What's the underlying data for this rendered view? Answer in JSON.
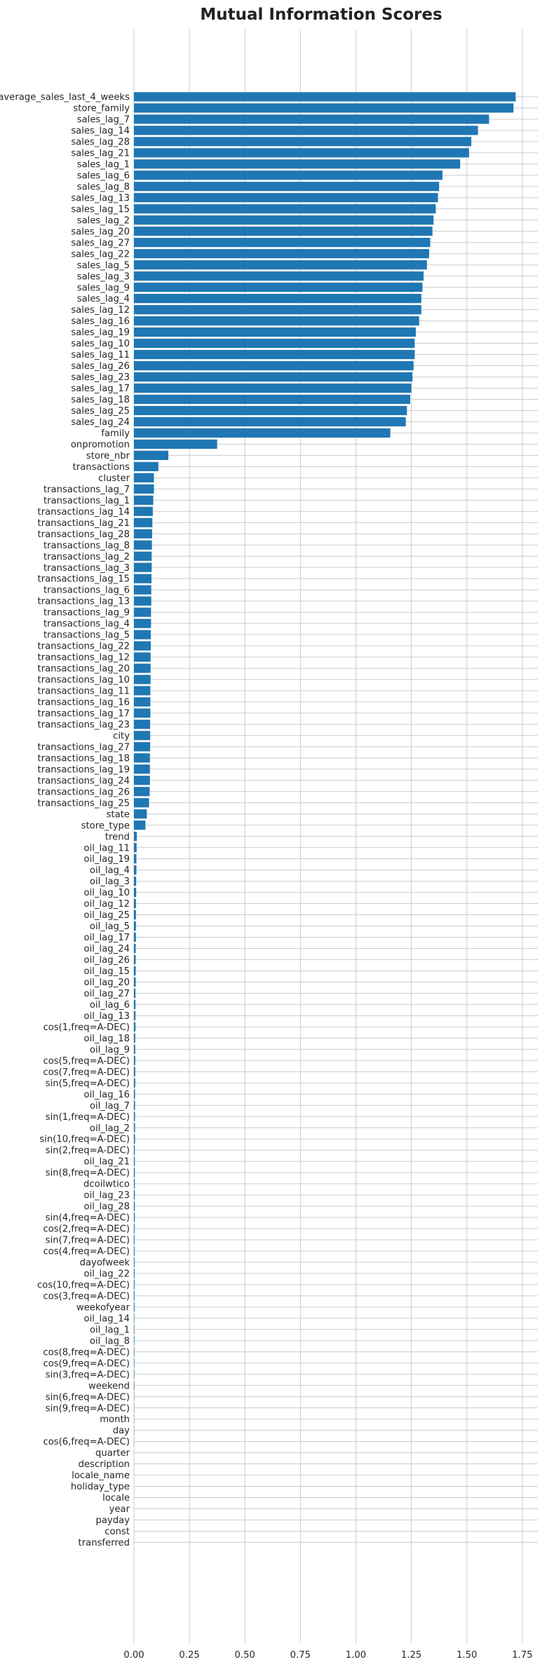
{
  "chart_data": {
    "type": "bar",
    "orientation": "horizontal",
    "title": "Mutual Information Scores",
    "xlabel": "",
    "ylabel": "",
    "xlim": [
      0,
      1.82
    ],
    "xticks": [
      "0.00",
      "0.25",
      "0.50",
      "0.75",
      "1.00",
      "1.25",
      "1.50",
      "1.75"
    ],
    "grid": true,
    "bar_color": "#1f77b4",
    "categories": [
      "average_sales_last_4_weeks",
      "store_family",
      "sales_lag_7",
      "sales_lag_14",
      "sales_lag_28",
      "sales_lag_21",
      "sales_lag_1",
      "sales_lag_6",
      "sales_lag_8",
      "sales_lag_13",
      "sales_lag_15",
      "sales_lag_2",
      "sales_lag_20",
      "sales_lag_27",
      "sales_lag_22",
      "sales_lag_5",
      "sales_lag_3",
      "sales_lag_9",
      "sales_lag_4",
      "sales_lag_12",
      "sales_lag_16",
      "sales_lag_19",
      "sales_lag_10",
      "sales_lag_11",
      "sales_lag_26",
      "sales_lag_23",
      "sales_lag_17",
      "sales_lag_18",
      "sales_lag_25",
      "sales_lag_24",
      "family",
      "onpromotion",
      "store_nbr",
      "transactions",
      "cluster",
      "transactions_lag_7",
      "transactions_lag_1",
      "transactions_lag_14",
      "transactions_lag_21",
      "transactions_lag_28",
      "transactions_lag_8",
      "transactions_lag_2",
      "transactions_lag_3",
      "transactions_lag_15",
      "transactions_lag_6",
      "transactions_lag_13",
      "transactions_lag_9",
      "transactions_lag_4",
      "transactions_lag_5",
      "transactions_lag_22",
      "transactions_lag_12",
      "transactions_lag_20",
      "transactions_lag_10",
      "transactions_lag_11",
      "transactions_lag_16",
      "transactions_lag_17",
      "transactions_lag_23",
      "city",
      "transactions_lag_27",
      "transactions_lag_18",
      "transactions_lag_19",
      "transactions_lag_24",
      "transactions_lag_26",
      "transactions_lag_25",
      "state",
      "store_type",
      "trend",
      "oil_lag_11",
      "oil_lag_19",
      "oil_lag_4",
      "oil_lag_3",
      "oil_lag_10",
      "oil_lag_12",
      "oil_lag_25",
      "oil_lag_5",
      "oil_lag_17",
      "oil_lag_24",
      "oil_lag_26",
      "oil_lag_15",
      "oil_lag_20",
      "oil_lag_27",
      "oil_lag_6",
      "oil_lag_13",
      "cos(1,freq=A-DEC)",
      "oil_lag_18",
      "oil_lag_9",
      "cos(5,freq=A-DEC)",
      "cos(7,freq=A-DEC)",
      "sin(5,freq=A-DEC)",
      "oil_lag_16",
      "oil_lag_7",
      "sin(1,freq=A-DEC)",
      "oil_lag_2",
      "sin(10,freq=A-DEC)",
      "sin(2,freq=A-DEC)",
      "oil_lag_21",
      "sin(8,freq=A-DEC)",
      "dcoilwtico",
      "oil_lag_23",
      "oil_lag_28",
      "sin(4,freq=A-DEC)",
      "cos(2,freq=A-DEC)",
      "sin(7,freq=A-DEC)",
      "cos(4,freq=A-DEC)",
      "dayofweek",
      "oil_lag_22",
      "cos(10,freq=A-DEC)",
      "cos(3,freq=A-DEC)",
      "weekofyear",
      "oil_lag_14",
      "oil_lag_1",
      "oil_lag_8",
      "cos(8,freq=A-DEC)",
      "cos(9,freq=A-DEC)",
      "sin(3,freq=A-DEC)",
      "weekend",
      "sin(6,freq=A-DEC)",
      "sin(9,freq=A-DEC)",
      "month",
      "day",
      "cos(6,freq=A-DEC)",
      "quarter",
      "description",
      "locale_name",
      "holiday_type",
      "locale",
      "year",
      "payday",
      "const",
      "transferred"
    ],
    "values": [
      1.72,
      1.71,
      1.6,
      1.55,
      1.52,
      1.51,
      1.47,
      1.39,
      1.375,
      1.37,
      1.36,
      1.35,
      1.345,
      1.335,
      1.33,
      1.32,
      1.305,
      1.3,
      1.295,
      1.295,
      1.285,
      1.27,
      1.265,
      1.265,
      1.26,
      1.255,
      1.25,
      1.245,
      1.23,
      1.225,
      1.155,
      0.375,
      0.155,
      0.11,
      0.09,
      0.09,
      0.087,
      0.085,
      0.083,
      0.082,
      0.081,
      0.08,
      0.08,
      0.079,
      0.078,
      0.078,
      0.077,
      0.077,
      0.076,
      0.076,
      0.075,
      0.075,
      0.075,
      0.074,
      0.074,
      0.074,
      0.073,
      0.073,
      0.073,
      0.072,
      0.072,
      0.072,
      0.071,
      0.068,
      0.058,
      0.052,
      0.013,
      0.012,
      0.011,
      0.011,
      0.01,
      0.01,
      0.009,
      0.009,
      0.009,
      0.009,
      0.008,
      0.008,
      0.008,
      0.008,
      0.007,
      0.007,
      0.007,
      0.007,
      0.006,
      0.006,
      0.006,
      0.006,
      0.006,
      0.005,
      0.005,
      0.005,
      0.005,
      0.005,
      0.004,
      0.004,
      0.004,
      0.004,
      0.004,
      0.004,
      0.004,
      0.003,
      0.003,
      0.003,
      0.003,
      0.003,
      0.003,
      0.003,
      0.003,
      0.002,
      0.002,
      0.002,
      0.002,
      0.002,
      0.002,
      0.002,
      0.001,
      0.001,
      0.001,
      0.001,
      0.0005,
      0,
      0,
      0,
      0,
      0,
      0,
      0,
      0,
      0
    ]
  }
}
